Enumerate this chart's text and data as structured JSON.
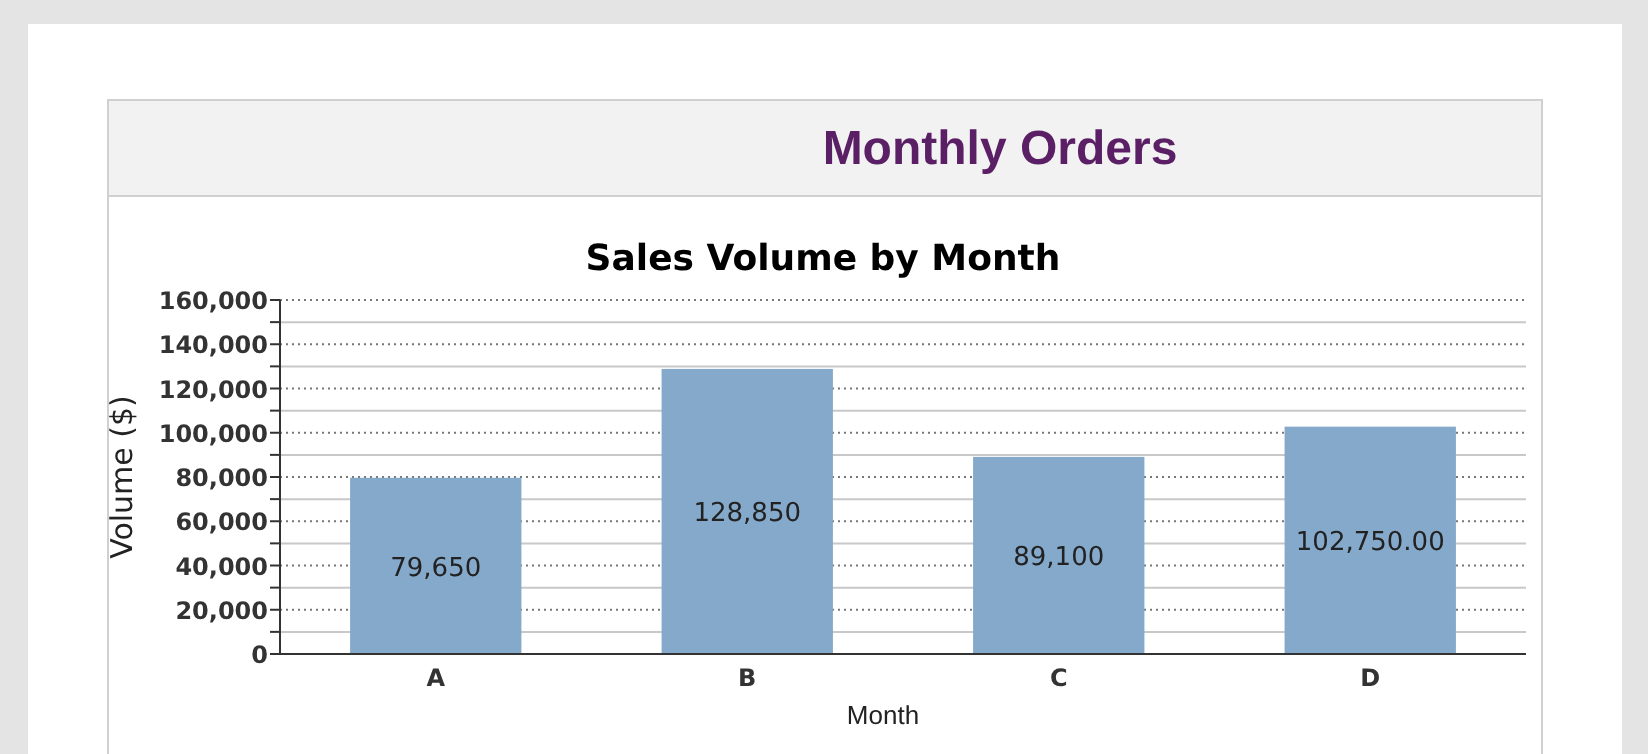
{
  "chart_data": {
    "type": "bar",
    "title": "Sales Volume by Month",
    "xlabel": "Month",
    "ylabel": "Volume ($)",
    "annotations": [
      "Monthly Orders"
    ],
    "categories": [
      "A",
      "B",
      "C",
      "D"
    ],
    "values": [
      79650,
      128850,
      89100,
      102750
    ],
    "value_labels": [
      "79,650",
      "128,850",
      "89,100",
      "102,750.00"
    ],
    "color": "#84a9cb",
    "ylim": [
      0,
      160000
    ],
    "yticks": [
      0,
      {
        "value": 10000,
        "label": null
      },
      {
        "value": 20000,
        "label": "20,000"
      },
      {
        "value": 30000,
        "label": null
      },
      {
        "value": 40000,
        "label": "40,000"
      },
      {
        "value": 50000,
        "label": null
      },
      {
        "value": 60000,
        "label": "60,000"
      },
      {
        "value": 70000,
        "label": null
      },
      {
        "value": 80000,
        "label": "80,000"
      },
      {
        "value": 90000,
        "label": null
      },
      {
        "value": 100000,
        "label": "100,000"
      },
      {
        "value": 110000,
        "label": null
      },
      {
        "value": 120000,
        "label": "120,000"
      },
      {
        "value": 130000,
        "label": null
      },
      {
        "value": 140000,
        "label": "140,000"
      },
      {
        "value": 150000,
        "label": null
      },
      {
        "value": 160000,
        "label": "160,000"
      }
    ],
    "grid": "y"
  }
}
